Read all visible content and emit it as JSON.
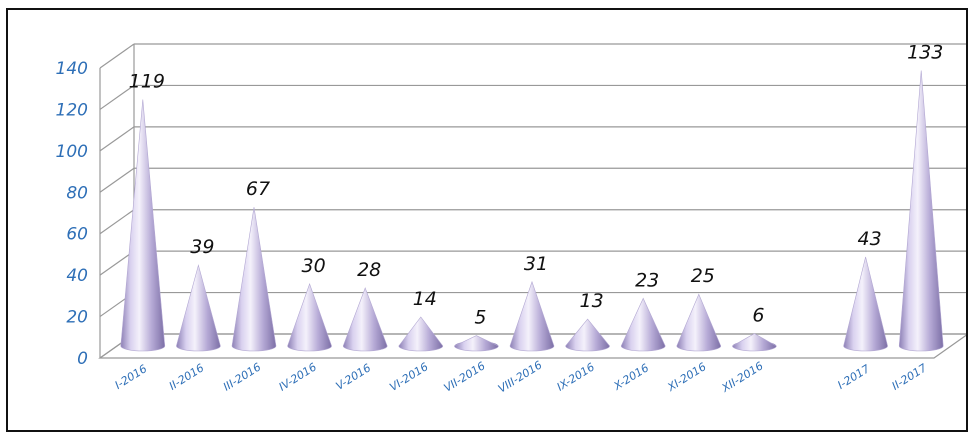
{
  "chart_data": {
    "type": "bar",
    "style": "3d-cone",
    "categories": [
      "I-2016",
      "II-2016",
      "III-2016",
      "IV-2016",
      "V-2016",
      "VI-2016",
      "VII-2016",
      "VIII-2016",
      "IX-2016",
      "X-2016",
      "XI-2016",
      "XII-2016",
      "",
      "I-2017",
      "II-2017"
    ],
    "values": [
      119,
      39,
      67,
      30,
      28,
      14,
      5,
      31,
      13,
      23,
      25,
      6,
      null,
      43,
      133
    ],
    "data_labels": [
      "119",
      "39",
      "67",
      "30",
      "28",
      "14",
      "5",
      "31",
      "13",
      "23",
      "25",
      "6",
      "",
      "43",
      "133"
    ],
    "yticks": [
      "0",
      "20",
      "40",
      "60",
      "80",
      "100",
      "120",
      "140"
    ],
    "ylim": [
      0,
      140
    ],
    "grid": true,
    "legend": "none",
    "colors": {
      "cone_light": "#f2eefb",
      "cone_mid": "#c9bfe3",
      "cone_dark": "#8c7fb5",
      "gridline": "#999999",
      "tick_text": "#2e6fb7",
      "label_text": "#111111"
    }
  }
}
